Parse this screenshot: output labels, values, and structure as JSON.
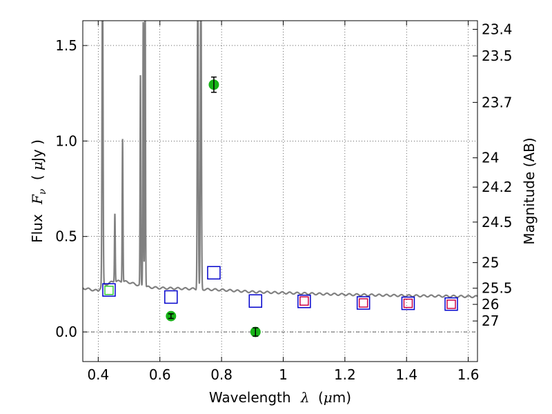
{
  "chart_data": {
    "type": "scatter",
    "xlabel_text": "Wavelength",
    "xlabel_symbol": "λ",
    "xlabel_unit_open": "(",
    "xlabel_unit_mu": "μ",
    "xlabel_unit_rest": "m)",
    "ylabel_prefix": "Flux",
    "ylabel_symbol": "F",
    "ylabel_sub": "ν",
    "ylabel_unit_open": "(",
    "ylabel_unit_mu": "μ",
    "ylabel_unit_rest": "Jy )",
    "y2label": "Magnitude (AB)",
    "xlim": [
      0.35,
      1.63
    ],
    "ylim": [
      -0.155,
      1.63
    ],
    "grid": true,
    "x_ticks": [
      {
        "value": 0.4,
        "label": "0.4"
      },
      {
        "value": 0.6,
        "label": "0.6"
      },
      {
        "value": 0.8,
        "label": "0.8"
      },
      {
        "value": 1.0,
        "label": "1"
      },
      {
        "value": 1.2,
        "label": "1.2"
      },
      {
        "value": 1.4,
        "label": "1.4"
      },
      {
        "value": 1.6,
        "label": "1.6"
      }
    ],
    "y_ticks": [
      {
        "value": 0.0,
        "label": "0.0"
      },
      {
        "value": 0.5,
        "label": "0.5"
      },
      {
        "value": 1.0,
        "label": "1.0"
      },
      {
        "value": 1.5,
        "label": "1.5"
      }
    ],
    "mag_ticks": [
      {
        "mag": 23.4,
        "label": "23.4"
      },
      {
        "mag": 23.5,
        "label": "23.5"
      },
      {
        "mag": 23.7,
        "label": "23.7"
      },
      {
        "mag": 24.0,
        "label": "24"
      },
      {
        "mag": 24.2,
        "label": "24.2"
      },
      {
        "mag": 24.5,
        "label": "24.5"
      },
      {
        "mag": 25.0,
        "label": "25"
      },
      {
        "mag": 25.5,
        "label": "25.5"
      },
      {
        "mag": 26.0,
        "label": "26"
      },
      {
        "mag": 27.0,
        "label": "27"
      }
    ],
    "model_spectrum": {
      "color": "#808080",
      "continuum": [
        [
          0.35,
          0.23
        ],
        [
          0.4,
          0.215
        ],
        [
          0.41,
          0.24
        ],
        [
          0.45,
          0.265
        ],
        [
          0.48,
          0.265
        ],
        [
          0.5,
          0.26
        ],
        [
          0.52,
          0.25
        ],
        [
          0.56,
          0.235
        ],
        [
          0.6,
          0.23
        ],
        [
          0.7,
          0.226
        ],
        [
          0.8,
          0.22
        ],
        [
          0.9,
          0.21
        ],
        [
          1.0,
          0.205
        ],
        [
          1.1,
          0.2
        ],
        [
          1.2,
          0.196
        ],
        [
          1.3,
          0.193
        ],
        [
          1.4,
          0.19
        ],
        [
          1.5,
          0.188
        ],
        [
          1.63,
          0.185
        ]
      ],
      "lines": [
        {
          "x": 0.414,
          "peak": 1.66,
          "width": 0.004
        },
        {
          "x": 0.454,
          "peak": 0.36,
          "width": 0.003
        },
        {
          "x": 0.479,
          "peak": 0.75,
          "width": 0.003
        },
        {
          "x": 0.537,
          "peak": 1.1,
          "width": 0.003
        },
        {
          "x": 0.546,
          "peak": 1.39,
          "width": 0.003
        },
        {
          "x": 0.552,
          "peak": 1.66,
          "width": 0.003
        },
        {
          "x": 0.723,
          "peak": 1.66,
          "width": 0.004
        },
        {
          "x": 0.733,
          "peak": 1.66,
          "width": 0.004
        }
      ]
    },
    "series": [
      {
        "marker": "circle",
        "color": "#17b317",
        "points": [
          {
            "x": 0.636,
            "y": 0.083,
            "yerr": 0.012
          },
          {
            "x": 0.775,
            "y": 1.295,
            "yerr": 0.04
          },
          {
            "x": 0.91,
            "y": 0.0,
            "yerr": 0.022
          }
        ]
      },
      {
        "marker": "square",
        "color": "#0000cc",
        "size": 18,
        "points": [
          {
            "x": 0.435,
            "y": 0.22
          },
          {
            "x": 0.636,
            "y": 0.183
          },
          {
            "x": 0.775,
            "y": 0.31
          },
          {
            "x": 0.91,
            "y": 0.162
          },
          {
            "x": 1.068,
            "y": 0.16
          },
          {
            "x": 1.26,
            "y": 0.152
          },
          {
            "x": 1.405,
            "y": 0.15
          },
          {
            "x": 1.545,
            "y": 0.146
          }
        ]
      },
      {
        "marker": "square",
        "color": "#cc0044",
        "size": 12,
        "points": [
          {
            "x": 1.068,
            "y": 0.162
          },
          {
            "x": 1.26,
            "y": 0.152
          },
          {
            "x": 1.405,
            "y": 0.15
          },
          {
            "x": 1.545,
            "y": 0.145
          }
        ]
      },
      {
        "marker": "square",
        "color": "#33cc33",
        "size": 12,
        "points": [
          {
            "x": 0.435,
            "y": 0.218
          }
        ]
      }
    ]
  }
}
